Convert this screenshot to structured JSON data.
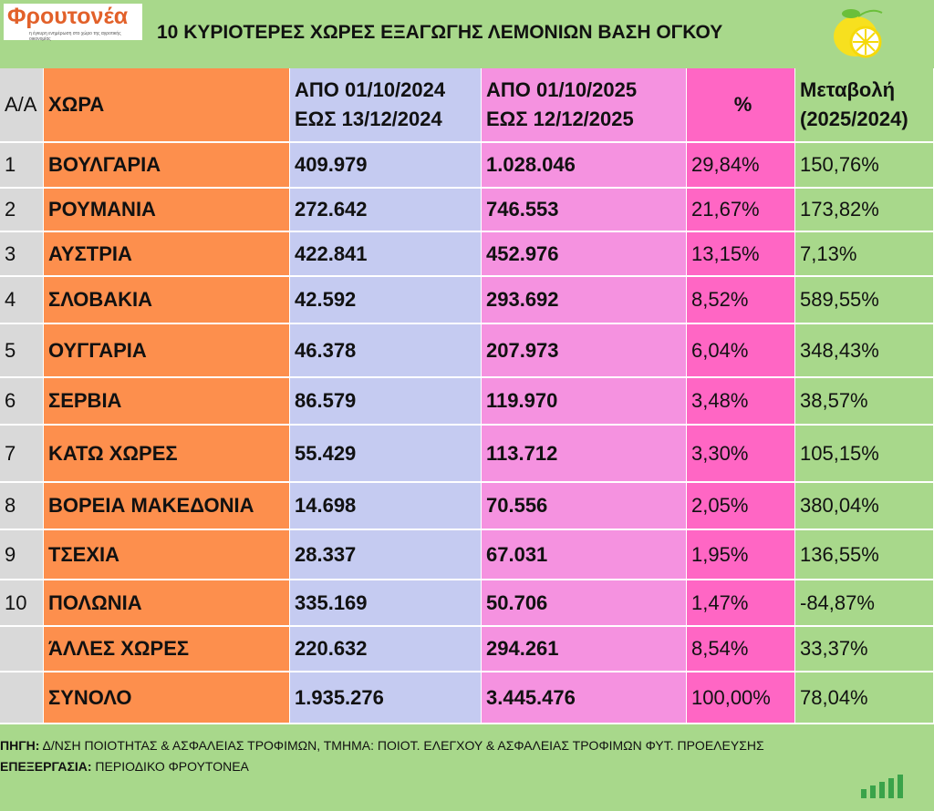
{
  "header": {
    "logo": "Φρουτονέα",
    "logo_tagline": "η έγκυρη ενημέρωση στο χώρο της αγροτικής οικονομίας",
    "title": "10 ΚΥΡΙΟΤΕΡΕΣ ΧΩΡΕΣ ΕΞΑΓΩΓΗΣ ΛΕΜΟΝΙΩΝ ΒΑΣΗ ΟΓΚΟΥ"
  },
  "table": {
    "columns": [
      [
        "Α/Α"
      ],
      [
        "ΧΩΡΑ"
      ],
      [
        "ΑΠΟ 01/10/2024",
        "ΕΩΣ 13/12/2024"
      ],
      [
        "ΑΠΟ 01/10/2025",
        "ΕΩΣ 12/12/2025"
      ],
      [
        "%"
      ],
      [
        "Μεταβολή",
        "(2025/2024)"
      ]
    ],
    "rows": [
      {
        "rank": "1",
        "country": "ΒΟΥΛΓΑΡΙΑ",
        "v2024": "409.979",
        "v2025": "1.028.046",
        "share": "29,84%",
        "change": "150,76%"
      },
      {
        "rank": "2",
        "country": "ΡΟΥΜΑΝΙΑ",
        "v2024": "272.642",
        "v2025": "746.553",
        "share": "21,67%",
        "change": "173,82%"
      },
      {
        "rank": "3",
        "country": "ΑΥΣΤΡΙΑ",
        "v2024": "422.841",
        "v2025": "452.976",
        "share": "13,15%",
        "change": "7,13%"
      },
      {
        "rank": "4",
        "country": "ΣΛΟΒΑΚΙΑ",
        "v2024": "42.592",
        "v2025": "293.692",
        "share": "8,52%",
        "change": "589,55%"
      },
      {
        "rank": "5",
        "country": "ΟΥΓΓΑΡΙΑ",
        "v2024": "46.378",
        "v2025": "207.973",
        "share": "6,04%",
        "change": "348,43%"
      },
      {
        "rank": "6",
        "country": "ΣΕΡΒΙΑ",
        "v2024": "86.579",
        "v2025": "119.970",
        "share": "3,48%",
        "change": "38,57%"
      },
      {
        "rank": "7",
        "country": "ΚΑΤΩ ΧΩΡΕΣ",
        "v2024": "55.429",
        "v2025": "113.712",
        "share": "3,30%",
        "change": "105,15%"
      },
      {
        "rank": "8",
        "country": "ΒΟΡΕΙΑ ΜΑΚΕΔΟΝΙΑ",
        "v2024": "14.698",
        "v2025": "70.556",
        "share": "2,05%",
        "change": "380,04%"
      },
      {
        "rank": "9",
        "country": "ΤΣΕΧΙΑ",
        "v2024": "28.337",
        "v2025": "67.031",
        "share": "1,95%",
        "change": "136,55%"
      },
      {
        "rank": "10",
        "country": "ΠΟΛΩΝΙΑ",
        "v2024": "335.169",
        "v2025": "50.706",
        "share": "1,47%",
        "change": "-84,87%"
      },
      {
        "country": "ΆΛΛΕΣ ΧΩΡΕΣ",
        "v2024": "220.632",
        "v2025": "294.261",
        "share": "8,54%",
        "change": "33,37%"
      },
      {
        "country": "ΣΥΝΟΛΟ",
        "v2024": "1.935.276",
        "v2025": "3.445.476",
        "share": "100,00%",
        "change": "78,04%"
      }
    ]
  },
  "footer": [
    {
      "label": "ΠΗΓΗ:",
      "text": " Δ/ΝΣΗ ΠΟΙΟΤΗΤΑΣ & ΑΣΦΑΛΕΙΑΣ ΤΡΟΦΙΜΩΝ, ΤΜΗΜΑ: ΠΟΙΟΤ. ΕΛΕΓΧΟΥ & ΑΣΦΑΛΕΙΑΣ ΤΡΟΦΙΜΩΝ ΦΥΤ. ΠΡΟΕΛΕΥΣΗΣ"
    },
    {
      "label": "ΕΠΕΞΕΡΓΑΣΙΑ:",
      "text": " ΠΕΡΙΟΔΙΚΟ ΦΡΟΥΤΟΝΕΑ"
    }
  ]
}
